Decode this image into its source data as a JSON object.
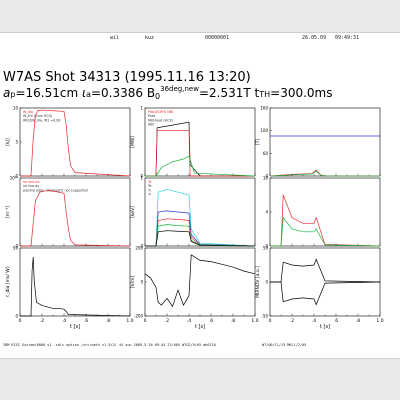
{
  "header": {
    "user": "wil",
    "host": "kuz",
    "job": "00000001",
    "date": "26.05.09",
    "time": "09:49:31"
  },
  "title": {
    "shot": "W7AS Shot 34313 (1995.11.16 13:20)",
    "a_p": "16.51cm",
    "iota_a": "0.3386",
    "b0_tag": "36deg,new",
    "b0": "2.531T",
    "t_th": "300.0ms"
  },
  "footer": {
    "left": "IBM RISC System/6000   v1 -calc option /src/math v1.9/2/ 44 sun 2009-5-26 09:44 23:005 W7G2/9/05 mh0716",
    "right": "W7/00/11/13 MKL1/2/05"
  },
  "colors": {
    "red": "#e8282a",
    "black": "#000000",
    "green": "#19b43c",
    "blue": "#2a3cd2",
    "cyan": "#2ad2e6",
    "magenta": "#d22ad2",
    "orange": "#f08c28"
  },
  "chart_data": [
    {
      "type": "line",
      "panel": "col1-row1",
      "ylabel": "[kJ]",
      "yticks": [
        "0",
        "5",
        "10"
      ],
      "xlim": [
        0,
        1.0
      ],
      "ylim": [
        0,
        10
      ],
      "legend": [
        "W_dia",
        "W_kin (from HCX)",
        "Wtot/W_dia, W1 =0.63"
      ],
      "series": [
        {
          "name": "W_dia",
          "color": "#e8282a",
          "x": [
            0.0,
            0.1,
            0.12,
            0.14,
            0.16,
            0.2,
            0.3,
            0.4,
            0.42,
            0.44,
            0.46,
            0.5,
            1.0
          ],
          "y": [
            0,
            0,
            5.5,
            8.8,
            9.6,
            9.7,
            9.6,
            9.5,
            7.5,
            4.0,
            1.5,
            0.5,
            0
          ]
        }
      ]
    },
    {
      "type": "line",
      "panel": "col1-row2",
      "ylabel": "[m⁻³]",
      "yticks": [
        "0",
        "10²⁰"
      ],
      "xlim": [
        0,
        1.0
      ],
      "ylim": [
        0,
        1.2
      ],
      "legend": [
        "ne line-int",
        "ne line-av",
        "plasma edge: diagnostic not supported"
      ],
      "series": [
        {
          "name": "n_e",
          "color": "#e8282a",
          "x": [
            0.0,
            0.1,
            0.12,
            0.14,
            0.18,
            0.25,
            0.3,
            0.4,
            0.42,
            0.44,
            0.46,
            0.5,
            1.0
          ],
          "y": [
            0,
            0,
            0.4,
            0.8,
            0.95,
            0.98,
            0.97,
            0.93,
            0.6,
            0.3,
            0.1,
            0.02,
            0
          ]
        }
      ]
    },
    {
      "type": "line",
      "panel": "col1-row3",
      "ylabel": "τ_dia [ms/\\nW]",
      "yticks": [
        "0",
        "50"
      ],
      "xlabel": "t [s]",
      "xticks": [
        "0",
        ".2",
        ".4",
        ".6",
        ".8",
        "1.0"
      ],
      "xlim": [
        0,
        1.0
      ],
      "ylim": [
        0,
        90
      ],
      "series": [
        {
          "name": "tau",
          "color": "#000000",
          "x": [
            0.0,
            0.1,
            0.11,
            0.12,
            0.13,
            0.15,
            0.2,
            0.25,
            0.3,
            0.35,
            0.4,
            0.42,
            0.44,
            1.0
          ],
          "y": [
            0,
            0,
            60,
            78,
            45,
            18,
            14,
            12,
            10,
            10,
            9,
            6,
            2,
            0
          ]
        }
      ]
    },
    {
      "type": "line",
      "panel": "col2-row1",
      "ylabel": "[MW]",
      "yticks": [
        "0",
        "1"
      ],
      "xlim": [
        0,
        1.0
      ],
      "ylim": [
        0,
        1.2
      ],
      "legend": [
        "Ptot(ECRH) NBI",
        "Prad",
        "NBI-heat (HCX)",
        "NBI"
      ],
      "series": [
        {
          "name": "P_tot",
          "color": "#000000",
          "x": [
            0.0,
            0.1,
            0.11,
            0.4,
            0.41,
            0.5,
            1.0
          ],
          "y": [
            0,
            0,
            0.85,
            0.95,
            0.2,
            0,
            0
          ]
        },
        {
          "name": "P_nbi",
          "color": "#e8282a",
          "x": [
            0.0,
            0.1,
            0.11,
            0.4,
            0.41,
            0.5,
            1.0
          ],
          "y": [
            0,
            0,
            0.8,
            0.8,
            0,
            0,
            0
          ]
        },
        {
          "name": "P_rad",
          "color": "#19b43c",
          "x": [
            0.0,
            0.1,
            0.15,
            0.25,
            0.35,
            0.4,
            0.45,
            1.0
          ],
          "y": [
            0,
            0,
            0.15,
            0.25,
            0.3,
            0.35,
            0.05,
            0
          ]
        }
      ]
    },
    {
      "type": "line",
      "panel": "col2-row2",
      "ylabel": "[keV]",
      "yticks": [
        "0",
        "1"
      ],
      "xlim": [
        0,
        1.0
      ],
      "ylim": [
        0,
        1.2
      ],
      "legend": [
        "Te",
        "Te",
        "Ti",
        "Ti"
      ],
      "series": [
        {
          "name": "Te0",
          "color": "#2ad2e6",
          "x": [
            0.0,
            0.1,
            0.12,
            0.2,
            0.3,
            0.4,
            0.42,
            0.5,
            1.0
          ],
          "y": [
            0,
            0,
            0.95,
            1.0,
            0.95,
            0.9,
            0.3,
            0.05,
            0
          ]
        },
        {
          "name": "Te1",
          "color": "#2a3cd2",
          "x": [
            0.0,
            0.1,
            0.12,
            0.2,
            0.3,
            0.4,
            0.42,
            0.5,
            1.0
          ],
          "y": [
            0,
            0,
            0.6,
            0.62,
            0.6,
            0.58,
            0.2,
            0.03,
            0
          ]
        },
        {
          "name": "Ti0",
          "color": "#e8282a",
          "x": [
            0.0,
            0.1,
            0.12,
            0.2,
            0.3,
            0.4,
            0.42,
            0.5,
            1.0
          ],
          "y": [
            0,
            0,
            0.45,
            0.48,
            0.47,
            0.45,
            0.15,
            0.02,
            0
          ]
        },
        {
          "name": "Ti1",
          "color": "#19b43c",
          "x": [
            0.0,
            0.1,
            0.12,
            0.2,
            0.3,
            0.4,
            0.42,
            0.5,
            1.0
          ],
          "y": [
            0,
            0,
            0.35,
            0.38,
            0.36,
            0.35,
            0.1,
            0.02,
            0
          ]
        },
        {
          "name": "Te2",
          "color": "#000000",
          "x": [
            0.0,
            0.1,
            0.12,
            0.2,
            0.3,
            0.4,
            0.42,
            0.5,
            1.0
          ],
          "y": [
            0,
            0,
            0.25,
            0.27,
            0.26,
            0.25,
            0.08,
            0.01,
            0
          ]
        }
      ]
    },
    {
      "type": "line",
      "panel": "col2-row3",
      "ylabel": "[V/m]",
      "yticks": [
        "-200",
        "0",
        "200"
      ],
      "xlabel": "t [s]",
      "xticks": [
        "0",
        ".2",
        ".4",
        ".6",
        ".8",
        "1.0"
      ],
      "xlim": [
        0,
        1.0
      ],
      "ylim": [
        -250,
        250
      ],
      "series": [
        {
          "name": "Er",
          "color": "#000000",
          "x": [
            0.0,
            0.05,
            0.1,
            0.12,
            0.15,
            0.2,
            0.25,
            0.3,
            0.35,
            0.4,
            0.42,
            0.5,
            0.6,
            0.7,
            0.8,
            0.9,
            1.0
          ],
          "y": [
            60,
            30,
            -40,
            -150,
            -170,
            -120,
            -180,
            -60,
            -170,
            -100,
            200,
            160,
            150,
            130,
            110,
            80,
            60
          ]
        }
      ]
    },
    {
      "type": "line",
      "panel": "col3-row1",
      "ylabel": "[T]",
      "yticks": [
        "0",
        "60",
        "100",
        "160"
      ],
      "xlim": [
        0,
        1.0
      ],
      "ylim": [
        0,
        170
      ],
      "series": [
        {
          "name": "B_level",
          "color": "#2a3cd2",
          "x": [
            0.0,
            1.0
          ],
          "y": [
            100,
            100
          ]
        },
        {
          "name": "ECE",
          "color": "#e8282a",
          "x": [
            0.0,
            0.1,
            0.2,
            0.3,
            0.38,
            0.42,
            0.46,
            0.5,
            1.0
          ],
          "y": [
            0,
            2,
            4,
            5,
            6,
            15,
            3,
            0,
            0
          ]
        },
        {
          "name": "ECE2",
          "color": "#19b43c",
          "x": [
            0.0,
            0.1,
            0.2,
            0.3,
            0.38,
            0.42,
            0.46,
            0.5,
            1.0
          ],
          "y": [
            0,
            1,
            3,
            4,
            5,
            12,
            2,
            0,
            0
          ]
        }
      ]
    },
    {
      "type": "line",
      "panel": "col3-row2",
      "ylabel": "",
      "yticks": [
        "0",
        "4",
        "10"
      ],
      "xlim": [
        0,
        1.0
      ],
      "ylim": [
        0,
        12
      ],
      "series": [
        {
          "name": "Hα",
          "color": "#e8282a",
          "x": [
            0.0,
            0.1,
            0.12,
            0.2,
            0.3,
            0.4,
            0.42,
            0.5,
            1.0
          ],
          "y": [
            0,
            0,
            9,
            5,
            4,
            4,
            5,
            0.3,
            0
          ]
        },
        {
          "name": "Hα2",
          "color": "#19b43c",
          "x": [
            0.0,
            0.1,
            0.12,
            0.2,
            0.3,
            0.4,
            0.42,
            0.5,
            1.0
          ],
          "y": [
            0,
            0,
            5,
            3,
            2.5,
            2.5,
            3,
            0.2,
            0
          ]
        }
      ]
    },
    {
      "type": "line",
      "panel": "col3-row3",
      "ylabel": "MIRNOV [a.u.]",
      "yticks": [
        "-50",
        "0",
        "50"
      ],
      "xlabel": "t [s]",
      "xticks": [
        "0",
        ".2",
        ".4",
        ".6",
        ".8",
        "1.0"
      ],
      "xlim": [
        0,
        1.0
      ],
      "ylim": [
        -60,
        60
      ],
      "series": [
        {
          "name": "mirnov_top",
          "color": "#000000",
          "x": [
            0.0,
            0.1,
            0.12,
            0.2,
            0.3,
            0.4,
            0.42,
            0.5,
            1.0
          ],
          "y": [
            0,
            0,
            35,
            30,
            28,
            30,
            40,
            2,
            0
          ]
        },
        {
          "name": "mirnov_bot",
          "color": "#000000",
          "x": [
            0.0,
            0.1,
            0.12,
            0.2,
            0.3,
            0.4,
            0.42,
            0.5,
            1.0
          ],
          "y": [
            0,
            0,
            -35,
            -30,
            -28,
            -30,
            -40,
            -2,
            0
          ]
        }
      ]
    }
  ]
}
